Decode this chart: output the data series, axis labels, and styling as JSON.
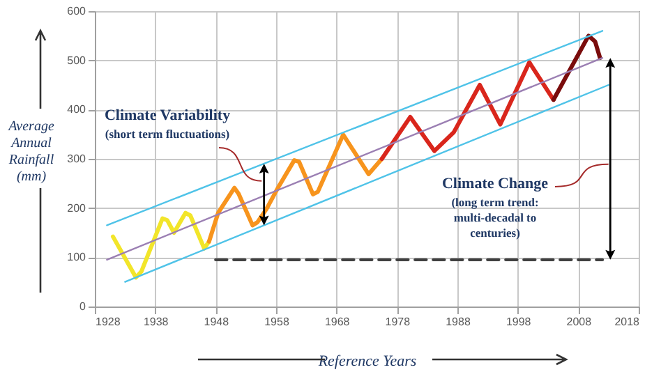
{
  "chart_data": {
    "type": "line",
    "xlabel": "Reference Years",
    "ylabel": "Average Annual Rainfall (mm)",
    "xlim": [
      1928,
      2018
    ],
    "xticks": [
      1928,
      1938,
      1948,
      1958,
      1968,
      1978,
      1988,
      1998,
      2008,
      2018
    ],
    "ylim": [
      0,
      600
    ],
    "yticks": [
      0,
      100,
      200,
      300,
      400,
      500,
      600
    ],
    "grid": true,
    "series": [
      {
        "color": "#f2e52a",
        "x": [
          1931,
          1934.8,
          1935.7,
          1939.2,
          1940,
          1941.1,
          1943,
          1943.8,
          1946.1,
          1946.9
        ],
        "values": [
          142,
          59,
          71,
          179,
          175,
          150,
          190,
          185,
          118,
          132
        ]
      },
      {
        "color": "#f7941d",
        "x": [
          1946.9,
          1948.4,
          1951.1,
          1951.8,
          1954.1,
          1954.9,
          1956.4,
          1958.3,
          1961,
          1961.8,
          1964.1,
          1964.9,
          1969.1,
          1973.3,
          1975.5
        ],
        "values": [
          132,
          190,
          241,
          229,
          165,
          171,
          198,
          241,
          297,
          294,
          228,
          233,
          349,
          269,
          300
        ]
      },
      {
        "color": "#d9261c",
        "x": [
          1975.5,
          1980.2,
          1984.2,
          1987.4,
          1991.7,
          1995.1,
          1999.9,
          2003.9
        ],
        "values": [
          300,
          385,
          316,
          354,
          450,
          370,
          496,
          420
        ]
      },
      {
        "color": "#7a0c0c",
        "x": [
          2003.9,
          2009.7,
          2010.8,
          2011.6
        ],
        "values": [
          420,
          550,
          538,
          505
        ]
      },
      {
        "color": "#9b7fb3",
        "x": [
          1930,
          2012
        ],
        "values": [
          95,
          505
        ]
      },
      {
        "color": "#4fc3e8",
        "x": [
          1930,
          2012
        ],
        "values": [
          165,
          560
        ]
      },
      {
        "color": "#4fc3e8",
        "x": [
          1933,
          2013
        ],
        "values": [
          50,
          450
        ]
      },
      {
        "color": "#404040",
        "line_style": "dashed",
        "x": [
          1948,
          2012
        ],
        "values": [
          95,
          95
        ]
      }
    ],
    "annotations": [
      "Climate Variability",
      "(short term fluctuations)",
      "Climate Change",
      "(long term trend: multi-decadal to centuries)"
    ]
  }
}
